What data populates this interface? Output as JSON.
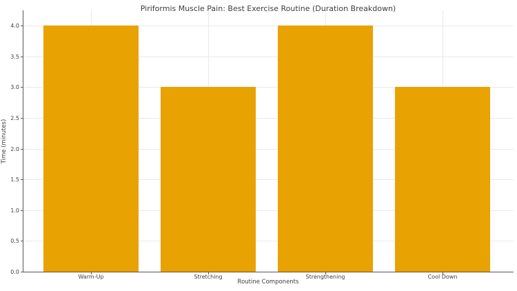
{
  "chart_data": {
    "type": "bar",
    "title": "Piriformis Muscle Pain: Best Exercise Routine (Duration Breakdown)",
    "xlabel": "Routine Components",
    "ylabel": "Time (minutes)",
    "categories": [
      "Warm-Up",
      "Stretching",
      "Strengthening",
      "Cool Down"
    ],
    "values": [
      4,
      3,
      4,
      3
    ],
    "yticks": [
      0.0,
      0.5,
      1.0,
      1.5,
      2.0,
      2.5,
      3.0,
      3.5,
      4.0
    ],
    "ytick_labels": [
      "0.0",
      "0.5",
      "1.0",
      "1.5",
      "2.0",
      "2.5",
      "3.0",
      "3.5",
      "4.0"
    ],
    "ylim": [
      0,
      4.25
    ],
    "grid": true,
    "legend": "none",
    "colors": {
      "bar": "#E8A202",
      "grid": "#e9e9e9",
      "axis": "#555555",
      "text": "#3d3d3d",
      "background": "#ffffff"
    }
  }
}
